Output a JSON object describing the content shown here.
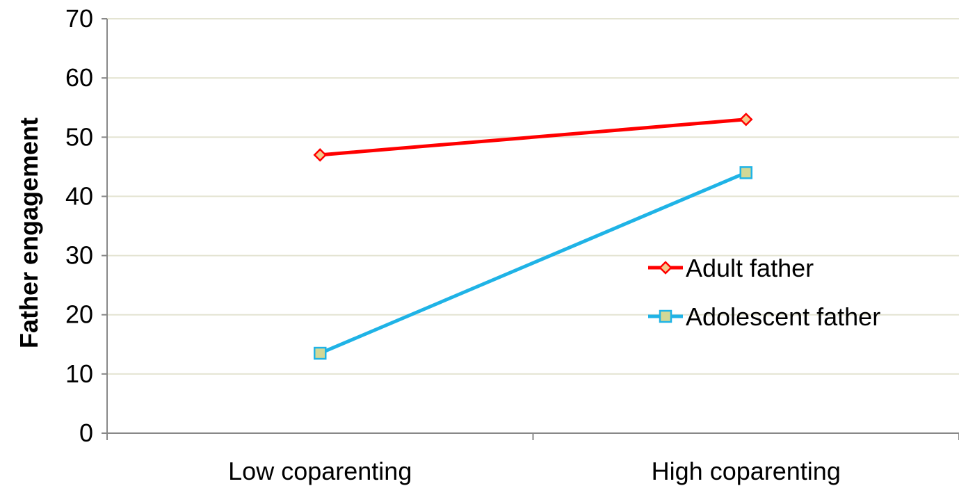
{
  "chart_data": {
    "type": "line",
    "title": "",
    "xlabel": "",
    "ylabel": "Father engagement",
    "categories": [
      "Low coparenting",
      "High coparenting"
    ],
    "ylim": [
      0,
      70
    ],
    "yticks": [
      0,
      10,
      20,
      30,
      40,
      50,
      60,
      70
    ],
    "grid": true,
    "legend_position": "right",
    "series": [
      {
        "name": "Adult father",
        "values": [
          47,
          53
        ],
        "line_color": "#ff0000",
        "marker": "diamond",
        "marker_fill": "#f5c98a",
        "marker_stroke": "#ff0000"
      },
      {
        "name": "Adolescent father",
        "values": [
          13.5,
          44
        ],
        "line_color": "#1fb3e6",
        "marker": "square",
        "marker_fill": "#d2d896",
        "marker_stroke": "#1fb3e6"
      }
    ],
    "colors": {
      "gridline": "#e4e4d2",
      "axis": "#888888"
    }
  }
}
